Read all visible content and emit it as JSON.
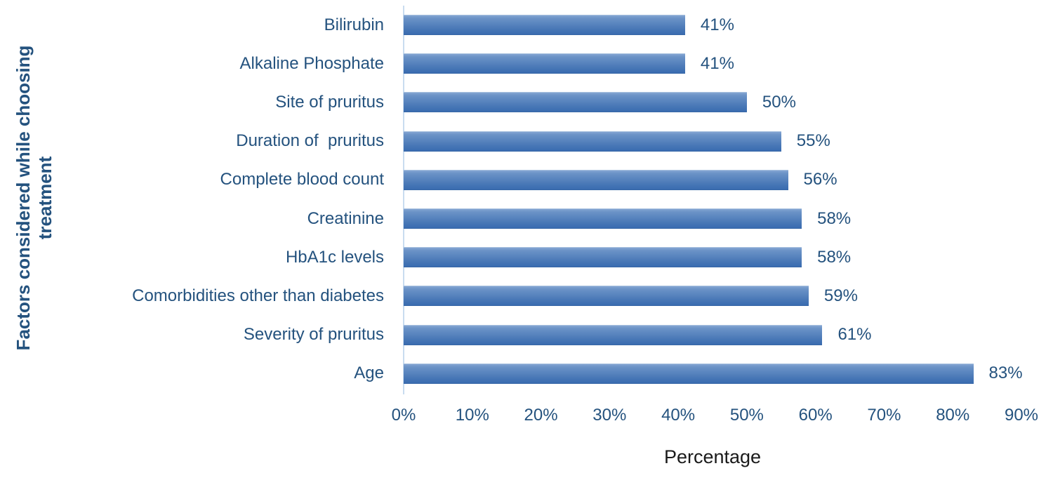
{
  "chart_data": {
    "type": "bar",
    "orientation": "horizontal",
    "title": "",
    "xlabel": "Percentage",
    "ylabel": "Factors considered while choosing treatment",
    "ylabel_lines": [
      "Factors considered while choosing",
      "treatment"
    ],
    "categories": [
      "Bilirubin",
      "Alkaline Phosphate",
      "Site of pruritus",
      "Duration of  pruritus",
      "Complete blood count",
      "Creatinine",
      "HbA1c levels",
      "Comorbidities other than diabetes",
      "Severity of pruritus",
      "Age"
    ],
    "values": [
      41,
      41,
      50,
      55,
      56,
      58,
      58,
      59,
      61,
      83
    ],
    "value_labels": [
      "41%",
      "41%",
      "50%",
      "55%",
      "56%",
      "58%",
      "58%",
      "59%",
      "61%",
      "83%"
    ],
    "xlim": [
      0,
      90
    ],
    "x_ticks": [
      {
        "value": 0,
        "label": "0%"
      },
      {
        "value": 10,
        "label": "10%"
      },
      {
        "value": 20,
        "label": "20%"
      },
      {
        "value": 30,
        "label": "30%"
      },
      {
        "value": 40,
        "label": "40%"
      },
      {
        "value": 50,
        "label": "50%"
      },
      {
        "value": 60,
        "label": "60%"
      },
      {
        "value": 70,
        "label": "70%"
      },
      {
        "value": 80,
        "label": "80%"
      },
      {
        "value": 90,
        "label": "90%"
      }
    ],
    "grid": false,
    "legend": false,
    "bar_color": "#4a7cba",
    "bar_gradient_top": "#84a5d2",
    "bar_gradient_bottom": "#3a6cb0",
    "axis_line_color": "#c9dcf0",
    "label_color": "#24527E",
    "xlabel_color": "#1a1a1a"
  }
}
